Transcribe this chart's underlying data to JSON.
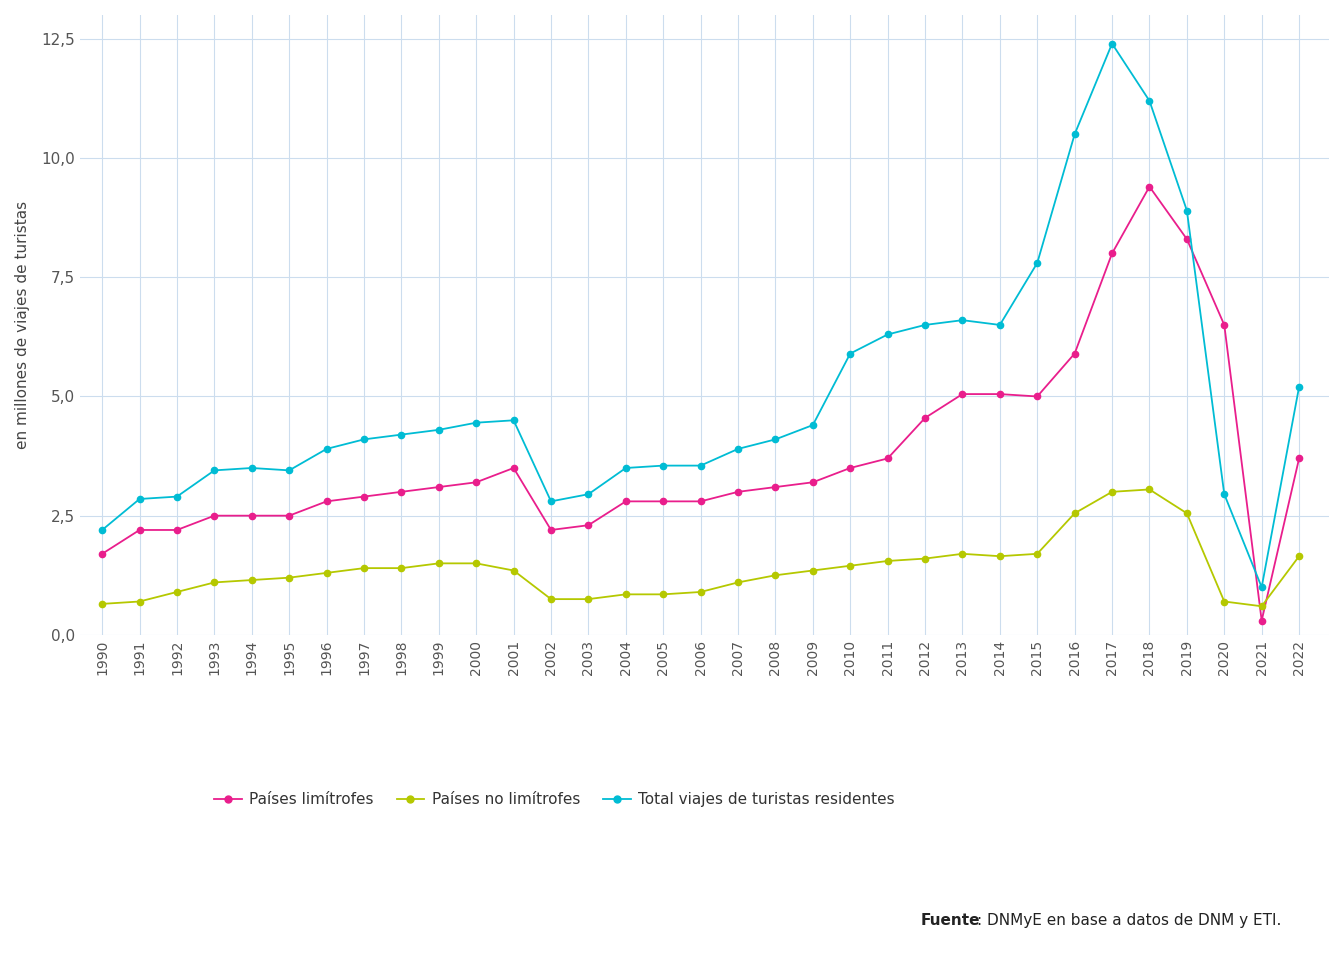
{
  "years": [
    1990,
    1991,
    1992,
    1993,
    1994,
    1995,
    1996,
    1997,
    1998,
    1999,
    2000,
    2001,
    2002,
    2003,
    2004,
    2005,
    2006,
    2007,
    2008,
    2009,
    2010,
    2011,
    2012,
    2013,
    2014,
    2015,
    2016,
    2017,
    2018,
    2019,
    2020,
    2021,
    2022
  ],
  "limitrofes": [
    1.7,
    2.2,
    2.2,
    2.5,
    2.5,
    2.5,
    2.8,
    2.9,
    3.0,
    3.1,
    3.2,
    3.5,
    2.2,
    2.3,
    2.8,
    2.8,
    2.8,
    3.0,
    3.1,
    3.2,
    3.5,
    3.7,
    4.55,
    5.05,
    5.05,
    5.0,
    5.9,
    8.0,
    9.4,
    8.3,
    6.5,
    0.3,
    3.7
  ],
  "no_limitrofes": [
    0.65,
    0.7,
    0.9,
    1.1,
    1.15,
    1.2,
    1.3,
    1.4,
    1.4,
    1.5,
    1.5,
    1.35,
    0.75,
    0.75,
    0.85,
    0.85,
    0.9,
    1.1,
    1.25,
    1.35,
    1.45,
    1.55,
    1.6,
    1.7,
    1.65,
    1.7,
    2.55,
    3.0,
    3.05,
    2.55,
    0.7,
    0.6,
    1.65
  ],
  "total": [
    2.2,
    2.85,
    2.9,
    3.45,
    3.5,
    3.45,
    3.9,
    4.1,
    4.2,
    4.3,
    4.45,
    4.5,
    2.8,
    2.95,
    3.5,
    3.55,
    3.55,
    3.9,
    4.1,
    4.4,
    5.9,
    6.3,
    6.5,
    6.6,
    6.5,
    7.8,
    10.5,
    12.4,
    11.2,
    8.9,
    2.95,
    1.0,
    5.2
  ],
  "color_limitrofes": "#e91e8c",
  "color_no_limitrofes": "#b5c800",
  "color_total": "#00bcd4",
  "ylabel": "en millones de viajes de turistas",
  "ylim": [
    0,
    13
  ],
  "yticks": [
    0.0,
    2.5,
    5.0,
    7.5,
    10.0,
    12.5
  ],
  "ytick_labels": [
    "0,0",
    "2,5",
    "5,0",
    "7,5",
    "10,0",
    "12,5"
  ],
  "legend_limitrofes": "Países limítrofes",
  "legend_no_limitrofes": "Países no limítrofes",
  "legend_total": "Total viajes de turistas residentes",
  "source_bold": "Fuente",
  "source_normal": ": DNMyE en base a datos de DNM y ETI.",
  "background_color": "#ffffff",
  "grid_color": "#ccddee"
}
